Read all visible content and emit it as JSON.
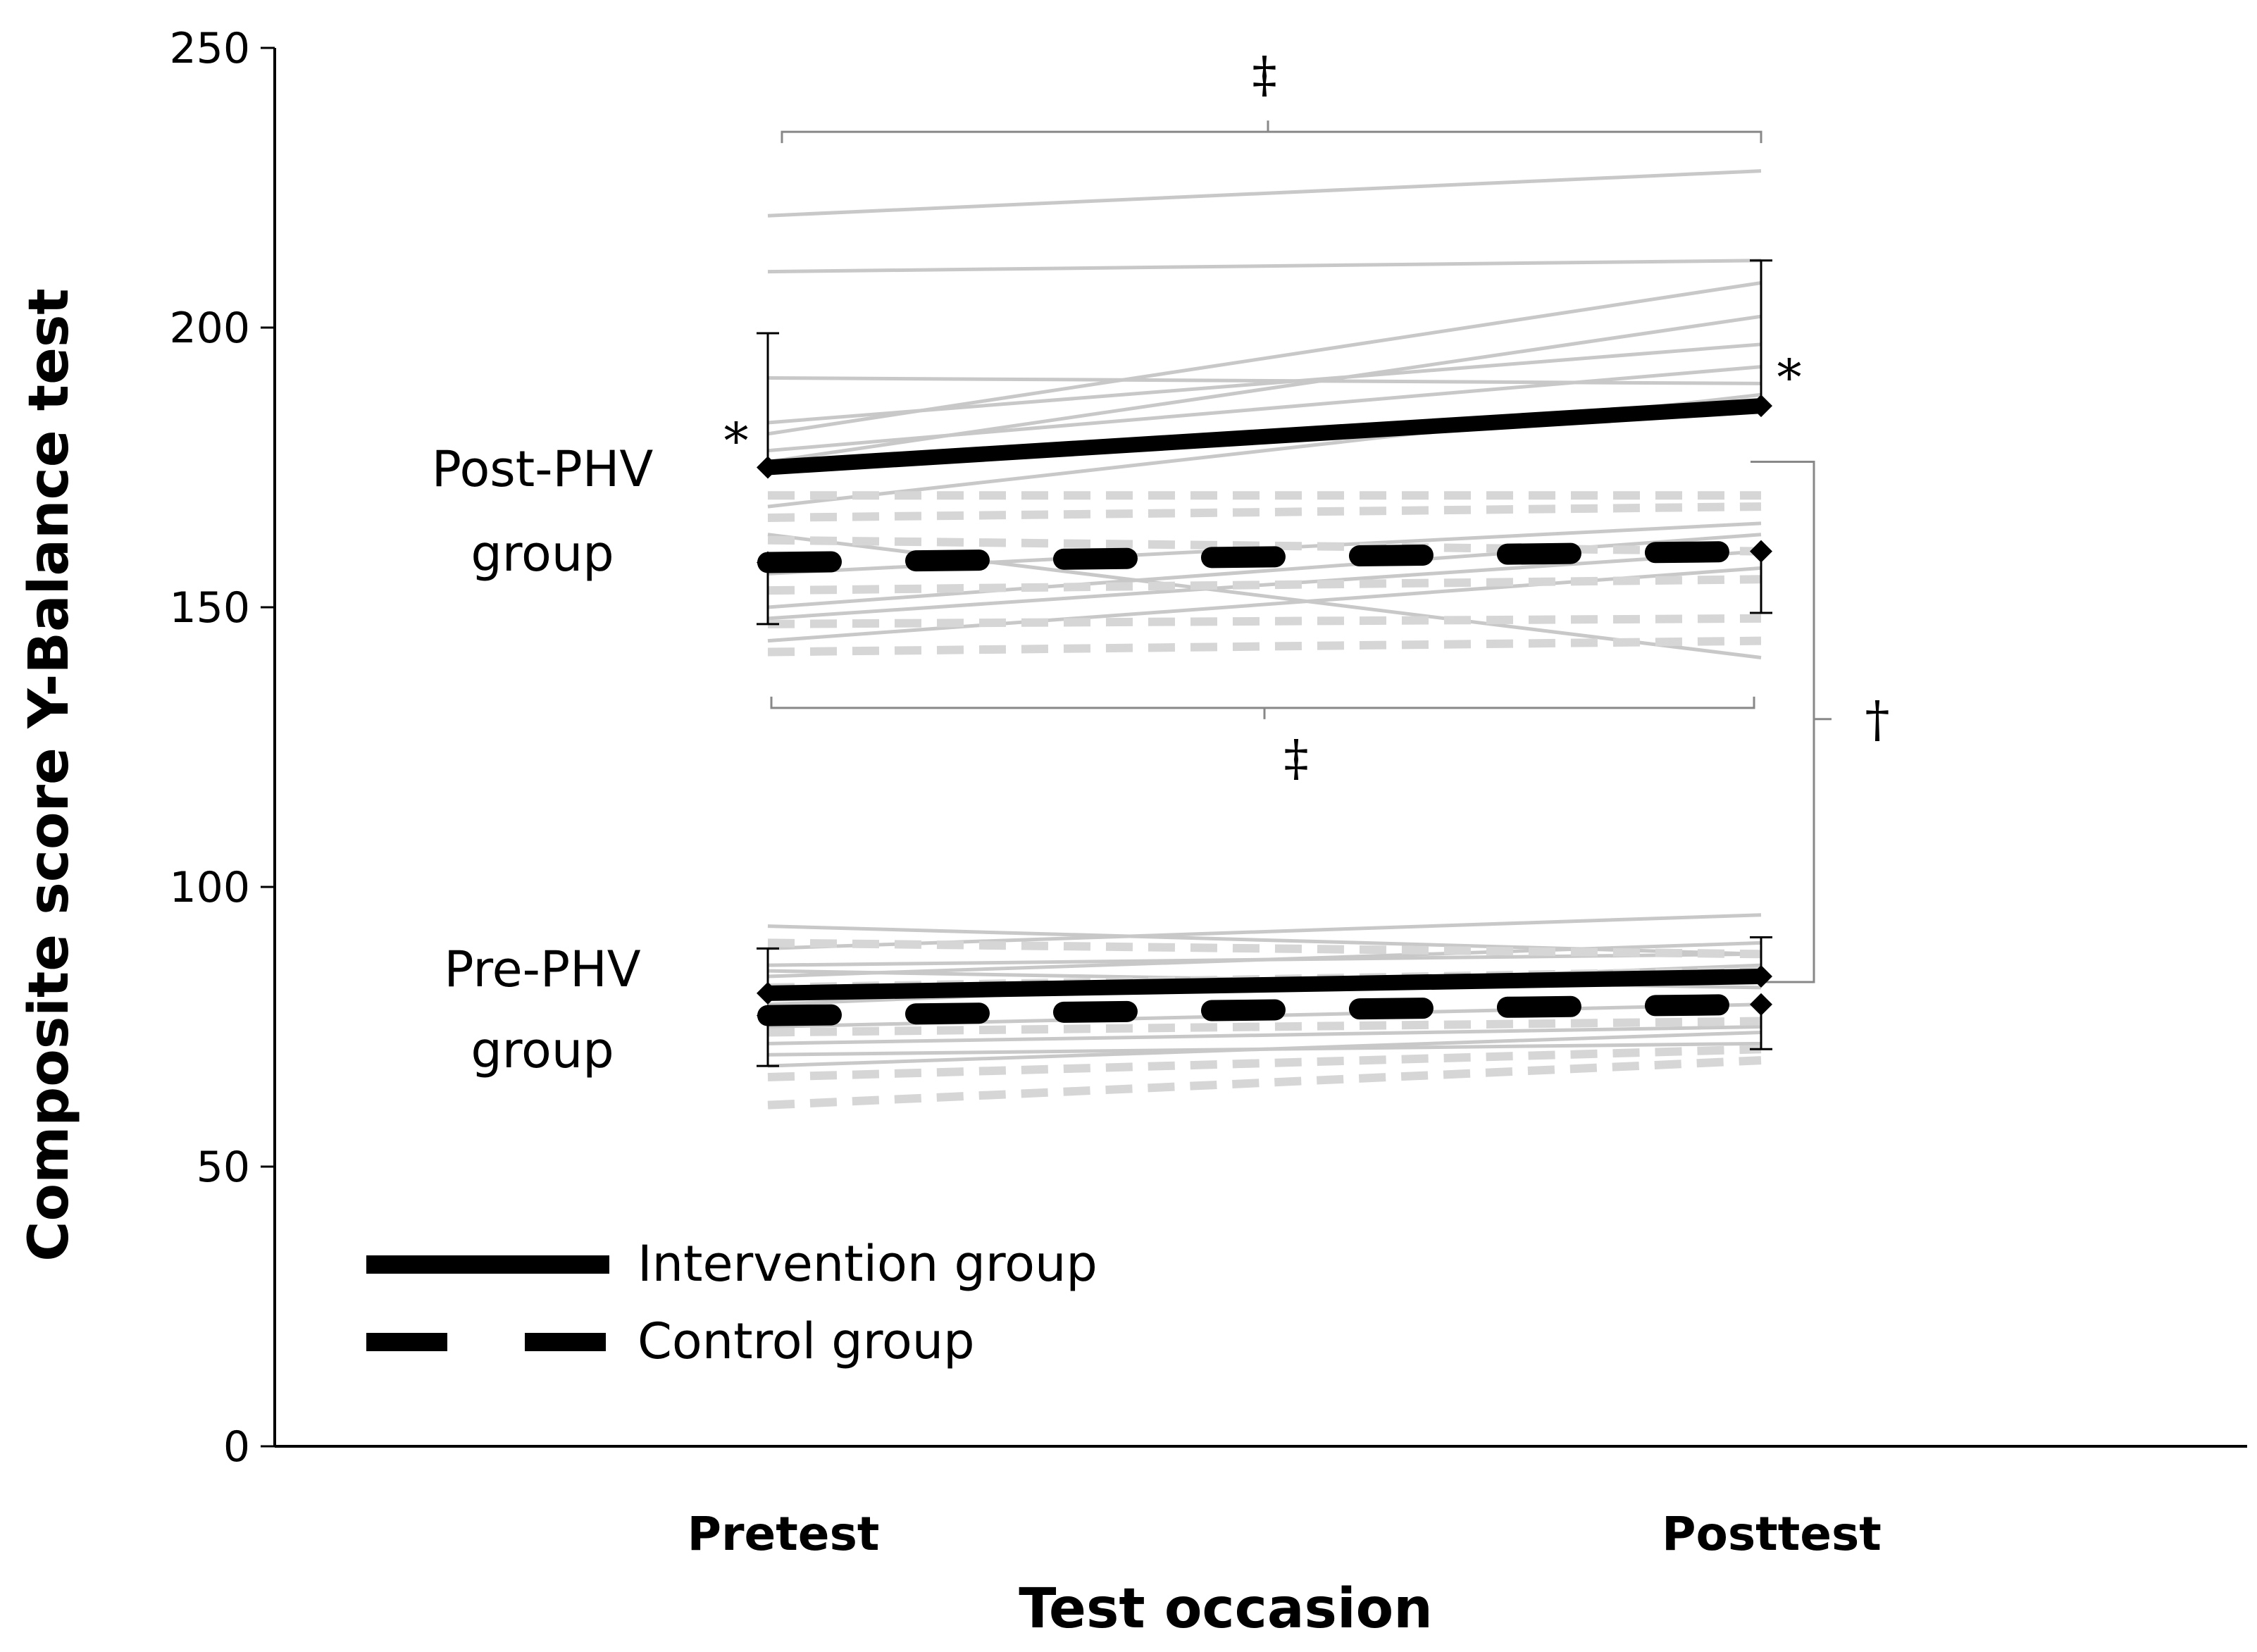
{
  "chart_data": {
    "type": "line",
    "title": "",
    "xlabel": "Test occasion",
    "ylabel": "Composite score  Y-Balance test",
    "categories": [
      "Pretest",
      "Posttest"
    ],
    "ylim": [
      0,
      250
    ],
    "yticks": [
      0,
      50,
      100,
      150,
      200,
      250
    ],
    "grid": false,
    "legend_position": "bottom-left",
    "group_labels": {
      "post_phv_line1": "Post-PHV",
      "post_phv_line2": "group",
      "pre_phv_line1": "Pre-PHV",
      "pre_phv_line2": "group"
    },
    "legend": [
      {
        "label": "Intervention group",
        "style": "solid"
      },
      {
        "label": "Control group",
        "style": "dashed"
      }
    ],
    "colors": {
      "mean_line": "#000000",
      "individual_line": "#c8c8c8",
      "individual_dotted": "#d6d6d6",
      "bracket": "#888888"
    },
    "series": [
      {
        "name": "Intervention group",
        "group": "Post-PHV",
        "style": "solid",
        "values": [
          175,
          186
        ],
        "error": [
          24,
          26
        ],
        "error_side": "up"
      },
      {
        "name": "Control group",
        "group": "Post-PHV",
        "style": "dashed",
        "values": [
          158,
          160
        ],
        "error": [
          11,
          11
        ],
        "error_side": "down"
      },
      {
        "name": "Intervention group",
        "group": "Pre-PHV",
        "style": "solid",
        "values": [
          81,
          84
        ],
        "error": [
          8,
          7
        ],
        "error_side": "up"
      },
      {
        "name": "Control group",
        "group": "Pre-PHV",
        "style": "dashed",
        "values": [
          77,
          79
        ],
        "error": [
          9,
          8
        ],
        "error_side": "down"
      }
    ],
    "individuals": {
      "post_intervention": [
        [
          220,
          228
        ],
        [
          210,
          212
        ],
        [
          191,
          190
        ],
        [
          183,
          197
        ],
        [
          181,
          208
        ],
        [
          178,
          193
        ],
        [
          176,
          202
        ],
        [
          168,
          188
        ]
      ],
      "post_control_solid": [
        [
          163,
          141
        ],
        [
          156,
          165
        ],
        [
          150,
          163
        ],
        [
          148,
          160
        ],
        [
          144,
          157
        ]
      ],
      "post_control_dotted": [
        [
          170,
          170
        ],
        [
          166,
          168
        ],
        [
          162,
          160
        ],
        [
          153,
          155
        ],
        [
          147,
          148
        ],
        [
          142,
          144
        ]
      ],
      "pre_intervention": [
        [
          93,
          88
        ],
        [
          89,
          95
        ],
        [
          86,
          88
        ],
        [
          84,
          90
        ],
        [
          79,
          86
        ],
        [
          75,
          79
        ],
        [
          68,
          74
        ]
      ],
      "pre_control_solid": [
        [
          85,
          82
        ],
        [
          72,
          75
        ],
        [
          70,
          72
        ]
      ],
      "pre_control_dotted": [
        [
          90,
          88
        ],
        [
          82,
          85
        ],
        [
          74,
          76
        ],
        [
          66,
          71
        ],
        [
          61,
          69
        ]
      ]
    },
    "annotations": {
      "sig_pre_post_phv": "*",
      "sig_post_post_phv": "*",
      "sig_between_top": "‡",
      "sig_between_mid": "‡",
      "sig_between_groups": "†"
    }
  }
}
